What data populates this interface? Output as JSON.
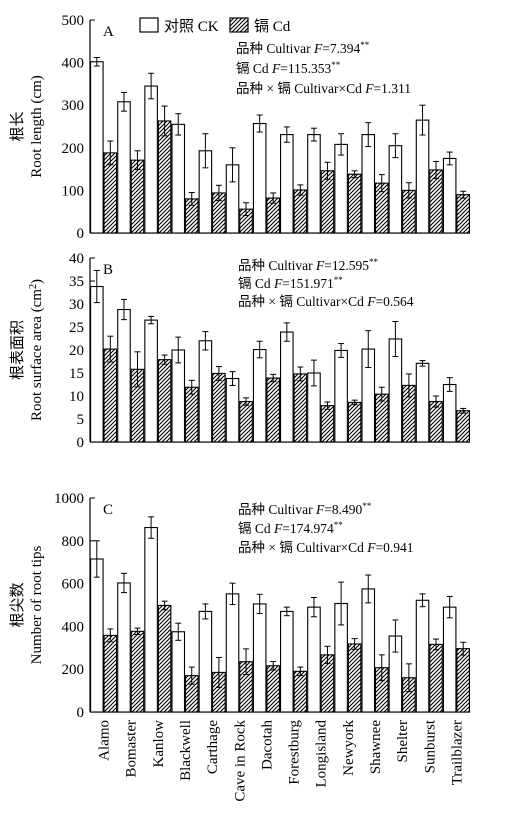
{
  "legend": {
    "ck_label": "对照 CK",
    "cd_label": "镉 Cd"
  },
  "x_tick_labels": [
    "Alamo",
    "Bomaster",
    "Kanlow",
    "Blackwell",
    "Carthage",
    "Cave in Rock",
    "Dacotah",
    "Forestburg",
    "Longisland",
    "Newyork",
    "Shawnee",
    "Shelter",
    "Sunburst",
    "Trailblazer"
  ],
  "chart_data": [
    {
      "type": "bar",
      "panel_label": "A",
      "categories": [
        "Alamo",
        "Bomaster",
        "Kanlow",
        "Blackwell",
        "Carthage",
        "Cave in Rock",
        "Dacotah",
        "Forestburg",
        "Longisland",
        "Newyork",
        "Shawnee",
        "Shelter",
        "Sunburst",
        "Trailblazer"
      ],
      "ylabel_cn": "根长",
      "ylabel_en": "Root length (cm)",
      "ylim": [
        0,
        500
      ],
      "yticks": [
        0,
        100,
        200,
        300,
        400,
        500
      ],
      "series": [
        {
          "name": "对照 CK",
          "values": [
            402,
            308,
            345,
            255,
            193,
            160,
            257,
            231,
            231,
            208,
            231,
            205,
            265,
            175
          ],
          "errors": [
            10,
            22,
            30,
            25,
            40,
            40,
            20,
            18,
            15,
            25,
            28,
            28,
            35,
            15
          ]
        },
        {
          "name": "镉 Cd",
          "values": [
            188,
            171,
            263,
            80,
            94,
            56,
            82,
            101,
            146,
            138,
            117,
            100,
            148,
            90
          ],
          "errors": [
            28,
            22,
            35,
            15,
            18,
            15,
            12,
            12,
            20,
            8,
            20,
            18,
            20,
            8
          ]
        }
      ],
      "annotations": [
        {
          "prefix": "品种 Cultivar ",
          "var": "F",
          "value": "=7.394",
          "sup": "**"
        },
        {
          "prefix": "镉 Cd ",
          "var": "F",
          "value": "=115.353",
          "sup": "**"
        },
        {
          "prefix": "品种 × 镉 Cultivar×Cd ",
          "var": "F",
          "value": "=1.311",
          "sup": ""
        }
      ]
    },
    {
      "type": "bar",
      "panel_label": "B",
      "categories": [
        "Alamo",
        "Bomaster",
        "Kanlow",
        "Blackwell",
        "Carthage",
        "Cave in Rock",
        "Dacotah",
        "Forestburg",
        "Longisland",
        "Newyork",
        "Shawnee",
        "Shelter",
        "Sunburst",
        "Trailblazer"
      ],
      "ylabel_cn": "根表面积",
      "ylabel_en_main": "Root surface area (cm",
      "ylabel_en_sup": "2",
      "ylabel_en_tail": ")",
      "ylim": [
        0,
        40
      ],
      "yticks": [
        0,
        5,
        10,
        15,
        20,
        25,
        30,
        35,
        40
      ],
      "series": [
        {
          "name": "对照 CK",
          "values": [
            33.8,
            28.8,
            26.5,
            20.0,
            22.0,
            13.8,
            20.1,
            23.9,
            15.0,
            19.9,
            20.2,
            22.4,
            17.1,
            12.5
          ],
          "errors": [
            3.5,
            2.2,
            0.8,
            2.8,
            2.0,
            1.5,
            1.8,
            2.0,
            2.8,
            1.5,
            4.0,
            3.8,
            0.6,
            1.5
          ]
        },
        {
          "name": "镉 Cd",
          "values": [
            20.2,
            15.8,
            17.9,
            11.9,
            14.9,
            8.8,
            13.9,
            14.8,
            7.9,
            8.6,
            10.4,
            12.3,
            8.8,
            6.8
          ],
          "errors": [
            2.8,
            3.8,
            1.0,
            1.5,
            1.5,
            0.8,
            0.8,
            1.5,
            0.8,
            0.5,
            1.5,
            2.5,
            1.2,
            0.5
          ]
        }
      ],
      "annotations": [
        {
          "prefix": "品种 Cultivar ",
          "var": "F",
          "value": "=12.595",
          "sup": "**"
        },
        {
          "prefix": "镉 Cd ",
          "var": "F",
          "value": "=151.971",
          "sup": "**"
        },
        {
          "prefix": "品种 × 镉 Cultivar×Cd ",
          "var": "F",
          "value": "=0.564",
          "sup": ""
        }
      ]
    },
    {
      "type": "bar",
      "panel_label": "C",
      "categories": [
        "Alamo",
        "Bomaster",
        "Kanlow",
        "Blackwell",
        "Carthage",
        "Cave in Rock",
        "Dacotah",
        "Forestburg",
        "Longisland",
        "Newyork",
        "Shawnee",
        "Shelter",
        "Sunburst",
        "Trailblazer"
      ],
      "ylabel_cn": "根尖数",
      "ylabel_en": "Number of root tips",
      "ylim": [
        0,
        1000
      ],
      "yticks": [
        0,
        200,
        400,
        600,
        800,
        1000
      ],
      "series": [
        {
          "name": "对照 CK",
          "values": [
            715,
            603,
            862,
            375,
            470,
            552,
            505,
            470,
            490,
            507,
            575,
            355,
            522,
            490
          ],
          "errors": [
            85,
            45,
            50,
            40,
            35,
            50,
            45,
            20,
            45,
            100,
            65,
            75,
            30,
            50
          ]
        },
        {
          "name": "镉 Cd",
          "values": [
            358,
            377,
            498,
            170,
            185,
            235,
            216,
            190,
            267,
            318,
            207,
            160,
            316,
            296
          ],
          "errors": [
            30,
            15,
            20,
            40,
            70,
            60,
            20,
            20,
            40,
            25,
            60,
            65,
            25,
            30
          ]
        }
      ],
      "annotations": [
        {
          "prefix": "品种 Cultivar ",
          "var": "F",
          "value": "=8.490",
          "sup": "**"
        },
        {
          "prefix": "镉 Cd ",
          "var": "F",
          "value": "=174.974",
          "sup": "**"
        },
        {
          "prefix": "品种 × 镉 Cultivar×Cd ",
          "var": "F",
          "value": "=0.941",
          "sup": ""
        }
      ]
    }
  ]
}
